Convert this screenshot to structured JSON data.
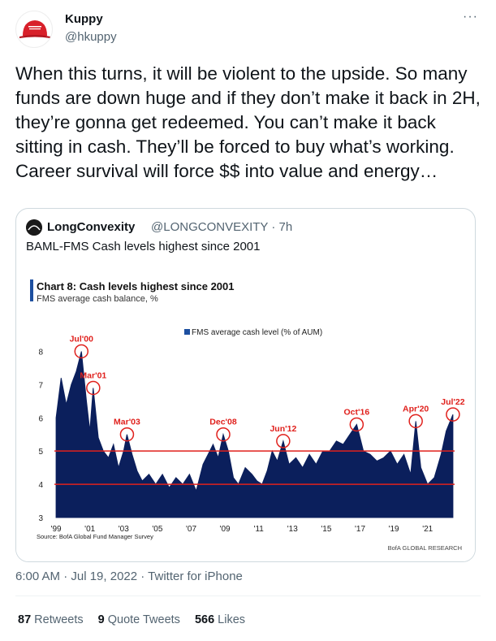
{
  "tweet": {
    "author_name": "Kuppy",
    "author_handle": "@hkuppy",
    "more_label": "···",
    "text": "When this turns, it will be violent to the upside. So many funds are down huge and if they don’t make it back in 2H, they’re gonna get redeemed. You can’t make it back sitting in cash. They’ll be forced to buy what’s working. Career survival will force $$ into value and energy…",
    "timestamp": "6:00 AM · Jul 19, 2022 · Twitter for iPhone",
    "retweets_count": "87",
    "retweets_label": "Retweets",
    "quote_count": "9",
    "quote_label": "Quote Tweets",
    "likes_count": "566",
    "likes_label": "Likes"
  },
  "quoted": {
    "author_name": "LongConvexity",
    "author_handle": "@LONGCONVEXITY · 7h",
    "text": "BAML-FMS Cash levels highest since 2001"
  },
  "colors": {
    "bar": "#0b1f5c",
    "ref_line": "#e0201c",
    "circle": "#e0201c",
    "accent": "#1d4fa0"
  },
  "chart_data": {
    "type": "area",
    "title": "Chart 8: Cash levels highest since 2001",
    "subtitle": "FMS average cash balance, %",
    "legend": "FMS average cash level (% of AUM)",
    "source": "Source: BofA Global Fund Manager Survey",
    "footer": "BofA GLOBAL RESEARCH",
    "grid": false,
    "legend_position": "top-center",
    "ylim": [
      3,
      8.5
    ],
    "xlim": [
      1998.9,
      2022.6
    ],
    "y_ticks": [
      "8",
      "7",
      "6",
      "5",
      "4",
      "3"
    ],
    "x_ticks": [
      "'99",
      "'01",
      "'03",
      "'05",
      "'07",
      "'09",
      "'11",
      "'13",
      "'15",
      "'17",
      "'19",
      "'21"
    ],
    "reference_lines": [
      5.0,
      4.0
    ],
    "annotations": [
      {
        "label": "Jul'00",
        "x": 2000.5,
        "y": 8.0
      },
      {
        "label": "Mar'01",
        "x": 2001.2,
        "y": 6.9
      },
      {
        "label": "Mar'03",
        "x": 2003.2,
        "y": 5.5
      },
      {
        "label": "Dec'08",
        "x": 2008.9,
        "y": 5.5
      },
      {
        "label": "Jun'12",
        "x": 2012.45,
        "y": 5.3
      },
      {
        "label": "Oct'16",
        "x": 2016.8,
        "y": 5.8
      },
      {
        "label": "Apr'20",
        "x": 2020.3,
        "y": 5.9
      },
      {
        "label": "Jul'22",
        "x": 2022.5,
        "y": 6.1
      }
    ],
    "series": [
      {
        "x": [
          1999.0,
          1999.3,
          1999.6,
          1999.9,
          2000.2,
          2000.5,
          2000.8,
          2001.0,
          2001.2,
          2001.5,
          2001.8,
          2002.1,
          2002.4,
          2002.7,
          2003.0,
          2003.2,
          2003.5,
          2003.8,
          2004.1,
          2004.5,
          2004.9,
          2005.3,
          2005.7,
          2006.1,
          2006.5,
          2006.9,
          2007.3,
          2007.7,
          2008.0,
          2008.3,
          2008.6,
          2008.9,
          2009.2,
          2009.5,
          2009.8,
          2010.2,
          2010.6,
          2010.9,
          2011.2,
          2011.5,
          2011.8,
          2012.1,
          2012.45,
          2012.8,
          2013.2,
          2013.6,
          2014.0,
          2014.4,
          2014.8,
          2015.2,
          2015.6,
          2016.0,
          2016.4,
          2016.8,
          2017.2,
          2017.6,
          2018.0,
          2018.4,
          2018.8,
          2019.2,
          2019.6,
          2020.0,
          2020.3,
          2020.6,
          2021.0,
          2021.4,
          2021.8,
          2022.1,
          2022.5
        ],
        "values": [
          6.0,
          7.2,
          6.4,
          7.0,
          7.4,
          8.0,
          6.5,
          5.6,
          6.9,
          5.4,
          5.0,
          4.8,
          5.2,
          4.5,
          5.0,
          5.5,
          4.9,
          4.4,
          4.1,
          4.3,
          4.0,
          4.3,
          3.9,
          4.2,
          4.0,
          4.3,
          3.8,
          4.6,
          4.9,
          5.2,
          4.8,
          5.5,
          5.0,
          4.2,
          4.0,
          4.5,
          4.3,
          4.1,
          4.0,
          4.4,
          5.0,
          4.7,
          5.3,
          4.6,
          4.8,
          4.5,
          4.9,
          4.6,
          5.0,
          5.0,
          5.3,
          5.2,
          5.5,
          5.8,
          5.0,
          4.9,
          4.7,
          4.8,
          5.0,
          4.6,
          4.9,
          4.3,
          5.9,
          4.5,
          4.0,
          4.2,
          4.9,
          5.6,
          6.1
        ]
      }
    ]
  }
}
